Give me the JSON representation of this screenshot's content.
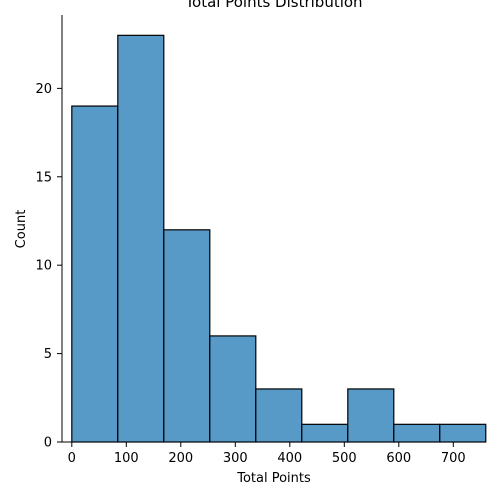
{
  "chart_data": {
    "type": "bar",
    "title": "Total Points Distribution",
    "xlabel": "Total Points",
    "ylabel": "Count",
    "bin_edges": [
      0,
      84.4,
      168.8,
      253.2,
      337.6,
      422,
      506.4,
      590.8,
      675.2,
      759.6
    ],
    "values": [
      19,
      23,
      12,
      6,
      3,
      1,
      3,
      1,
      1
    ],
    "xlim": [
      -18,
      760
    ],
    "ylim": [
      0,
      24.15
    ],
    "x_ticks": [
      0,
      100,
      200,
      300,
      400,
      500,
      600,
      700
    ],
    "y_ticks": [
      0,
      5,
      10,
      15,
      20
    ],
    "grid": false,
    "bar_color": "#5799c7",
    "edge_color": "#000000"
  }
}
